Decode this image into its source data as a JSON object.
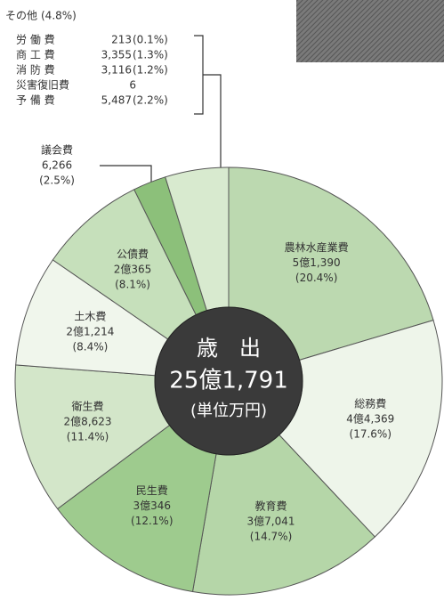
{
  "chart_data": {
    "type": "donut",
    "center_lines": [
      "歳　出",
      "25億1,791",
      "(単位万円)"
    ],
    "categories": [
      "農林水産業費",
      "総務費",
      "教育費",
      "民生費",
      "衛生費",
      "土木費",
      "公債費",
      "議会費",
      "その他"
    ],
    "values": [
      20.4,
      17.6,
      14.7,
      12.1,
      11.4,
      8.4,
      8.1,
      2.5,
      4.8
    ],
    "value_labels": [
      "(20.4%)",
      "(17.6%)",
      "(14.7%)",
      "(12.1%)",
      "(11.4%)",
      "(8.4%)",
      "(8.1%)",
      "(2.5%)",
      "(4.8%)"
    ],
    "amount_labels": [
      "5億1,390",
      "4億4,369",
      "3億7,041",
      "3億346",
      "2億8,623",
      "2億1,214",
      "2億365",
      "6,266",
      null
    ],
    "colors": [
      "#bcd9b0",
      "#eef5ea",
      "#b5d6a8",
      "#9ecb8e",
      "#d3e6c9",
      "#f0f6ec",
      "#c6e0bb",
      "#8cc07a",
      "#d8eacf"
    ],
    "other_breakdown": [
      {
        "name": "労 働 費",
        "amount": "213",
        "share": "(0.1%)"
      },
      {
        "name": "商 工 費",
        "amount": "3,355",
        "share": "(1.3%)"
      },
      {
        "name": "消 防 費",
        "amount": "3,116",
        "share": "(1.2%)"
      },
      {
        "name": "災害復旧費",
        "amount": "6",
        "share": null
      },
      {
        "name": "予 備 費",
        "amount": "5,487",
        "share": "(2.2%)"
      }
    ]
  }
}
